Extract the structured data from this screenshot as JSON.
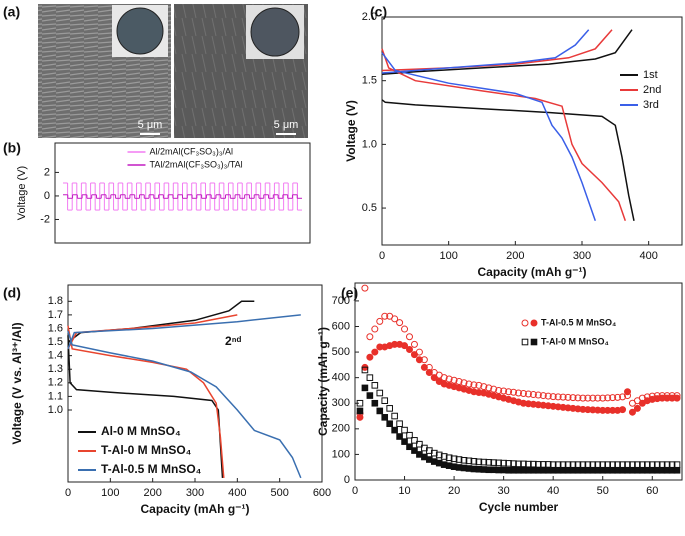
{
  "images": {
    "label": "(a)",
    "scale_bars": [
      "5 μm",
      "5 μm"
    ]
  },
  "chart_data": [
    {
      "label": "(b)",
      "type": "step",
      "y_label": "Voltage (V)",
      "ylim": [
        -4,
        4.5
      ],
      "yticks": [
        2,
        0,
        -2
      ],
      "legend": "upper center",
      "series": [
        {
          "name": "Al/2mAl(CF₃SO₃)₃/Al",
          "color": "#f27cf2",
          "values": [
            1.1,
            -1.2,
            1.1,
            -1.2,
            1.1,
            -1.2,
            1.1,
            -1.2,
            1.1,
            -1.2,
            1.1,
            -1.2,
            1.1,
            -1.2,
            1.1,
            -1.2,
            1.1,
            -1.2,
            1.1,
            -1.2,
            1.1,
            -1.2,
            1.1,
            -1.2,
            1.1,
            -1.2,
            1.1,
            -1.2,
            1.1,
            -1.2,
            1.1,
            -1.2,
            1.1,
            -1.2,
            1.1,
            -1.2,
            1.1,
            -1.2,
            1.1,
            -1.2,
            1.1,
            -1.2,
            1.1,
            -1.2,
            1.1,
            -1.2,
            1.1,
            -1.2,
            1.1,
            -1.2,
            1.1,
            -1.2
          ]
        },
        {
          "name": "TAl/2mAl(CF₃SO₃)₃/TAl",
          "color": "#c21dc2",
          "values": [
            0.1,
            -0.2,
            0.1,
            -0.2,
            0.1,
            -0.2,
            0.1,
            -0.2,
            0.1,
            -0.2,
            0.1,
            -0.2,
            0.1,
            -0.2,
            0.1,
            -0.2,
            0.1,
            -0.2,
            0.1,
            -0.2,
            0.1,
            -0.2,
            0.1,
            -0.2,
            0.1,
            -0.2,
            0.1,
            -0.2,
            0.1,
            -0.2,
            0.1,
            -0.2,
            0.1,
            -0.2,
            0.1,
            -0.2,
            0.1,
            -0.2,
            0.1,
            -0.2,
            0.1,
            -0.2,
            0.1,
            -0.2,
            0.1,
            -0.2,
            0.1,
            -0.2,
            0.1,
            -0.2
          ]
        }
      ]
    },
    {
      "label": "(c)",
      "type": "line",
      "x_label": "Capacity (mAh g⁻¹)",
      "y_label": "Voltage (V)",
      "xlim": [
        0,
        450
      ],
      "xticks": [
        0,
        100,
        200,
        300,
        400
      ],
      "ylim": [
        0.21,
        2.0
      ],
      "yticks": [
        0.5,
        {
          "value": 1,
          "label": "1.0"
        },
        1.5,
        {
          "value": 2,
          "label": "2.0"
        }
      ],
      "legend": "right",
      "series": [
        {
          "name": "1st",
          "color": "#111111",
          "x": [
            0,
            5,
            50,
            150,
            250,
            330,
            350,
            360,
            370,
            378,
            null,
            0,
            50,
            150,
            250,
            320,
            350,
            375
          ],
          "values": [
            1.35,
            1.33,
            1.31,
            1.28,
            1.25,
            1.22,
            1.15,
            0.9,
            0.6,
            0.4,
            null,
            1.55,
            1.57,
            1.6,
            1.63,
            1.67,
            1.72,
            1.9
          ]
        },
        {
          "name": "2nd",
          "color": "#e83a3a",
          "x": [
            0,
            10,
            50,
            150,
            230,
            270,
            285,
            300,
            330,
            355,
            365,
            null,
            0,
            100,
            200,
            280,
            320,
            345
          ],
          "values": [
            1.75,
            1.6,
            1.5,
            1.42,
            1.36,
            1.3,
            1.0,
            0.85,
            0.7,
            0.55,
            0.4,
            null,
            1.58,
            1.6,
            1.63,
            1.68,
            1.75,
            1.9
          ]
        },
        {
          "name": "3rd",
          "color": "#3a5fe8",
          "x": [
            0,
            20,
            100,
            200,
            240,
            255,
            270,
            285,
            300,
            320,
            null,
            0,
            100,
            200,
            260,
            290,
            310
          ],
          "values": [
            1.72,
            1.58,
            1.48,
            1.4,
            1.33,
            1.15,
            1.05,
            0.9,
            0.7,
            0.4,
            null,
            1.56,
            1.6,
            1.64,
            1.68,
            1.78,
            1.9
          ]
        }
      ]
    },
    {
      "label": "(d)",
      "type": "line",
      "x_label": "Capacity (mAh g⁻¹)",
      "y_label": "Voltage (V vs. Al³⁺/Al)",
      "annotation": "2ⁿᵈ",
      "xlim": [
        0,
        600
      ],
      "xticks": [
        0,
        100,
        200,
        300,
        400,
        500,
        600
      ],
      "ylim": [
        0.47,
        1.92
      ],
      "yticks": [
        {
          "value": 1,
          "label": "1.0"
        },
        1.1,
        1.2,
        1.3,
        1.4,
        1.5,
        1.6,
        1.7,
        1.8
      ],
      "legend": "lower left",
      "series": [
        {
          "name": "Al-0 M MnSO₄",
          "color": "#111111",
          "x": [
            0,
            5,
            20,
            100,
            250,
            340,
            355,
            365,
            null,
            0,
            30,
            150,
            300,
            380,
            410,
            440
          ],
          "values": [
            1.55,
            1.2,
            1.15,
            1.13,
            1.1,
            1.07,
            1.0,
            0.5,
            null,
            1.5,
            1.57,
            1.6,
            1.66,
            1.73,
            1.8,
            1.8
          ]
        },
        {
          "name": "T-Al-0 M MnSO₄",
          "color": "#e8452f",
          "x": [
            0,
            10,
            100,
            200,
            280,
            320,
            350,
            360,
            368,
            null,
            0,
            20,
            150,
            300,
            400
          ],
          "values": [
            1.62,
            1.45,
            1.4,
            1.35,
            1.3,
            1.2,
            1.05,
            0.8,
            0.5,
            null,
            1.45,
            1.57,
            1.6,
            1.64,
            1.7
          ]
        },
        {
          "name": "T-Al-0.5 M MnSO₄",
          "color": "#3a6fb0",
          "x": [
            0,
            10,
            100,
            200,
            290,
            350,
            400,
            440,
            500,
            530,
            550,
            null,
            0,
            15,
            200,
            400,
            550
          ],
          "values": [
            1.58,
            1.48,
            1.42,
            1.36,
            1.28,
            1.17,
            1.0,
            0.85,
            0.78,
            0.65,
            0.5,
            null,
            1.45,
            1.57,
            1.6,
            1.65,
            1.7
          ]
        }
      ]
    },
    {
      "label": "(e)",
      "type": "scatter",
      "x_label": "Cycle number",
      "y_label": "Capacity (mAh g⁻¹)",
      "xlim": [
        0,
        66
      ],
      "xticks": [
        0,
        10,
        20,
        30,
        40,
        50,
        60
      ],
      "ylim": [
        0,
        770
      ],
      "yticks": [
        0,
        100,
        200,
        300,
        400,
        500,
        600,
        700
      ],
      "legend": "upper right",
      "x": [
        1,
        2,
        3,
        4,
        5,
        6,
        7,
        8,
        9,
        10,
        11,
        12,
        13,
        14,
        15,
        16,
        17,
        18,
        19,
        20,
        21,
        22,
        23,
        24,
        25,
        26,
        27,
        28,
        29,
        30,
        31,
        32,
        33,
        34,
        35,
        36,
        37,
        38,
        39,
        40,
        41,
        42,
        43,
        44,
        45,
        46,
        47,
        48,
        49,
        50,
        51,
        52,
        53,
        54,
        55,
        56,
        57,
        58,
        59,
        60,
        61,
        62,
        63,
        64,
        65
      ],
      "series": [
        {
          "name": "T-Al-0.5 M MnSO₄",
          "color": "#e8302a",
          "marker": "circle",
          "values": [
            260,
            750,
            560,
            590,
            620,
            640,
            640,
            630,
            615,
            590,
            560,
            530,
            500,
            470,
            440,
            420,
            410,
            400,
            395,
            390,
            385,
            380,
            375,
            372,
            370,
            365,
            360,
            355,
            350,
            348,
            345,
            343,
            340,
            338,
            336,
            334,
            332,
            330,
            328,
            326,
            325,
            324,
            323,
            322,
            321,
            320,
            320,
            320,
            320,
            320,
            321,
            322,
            323,
            325,
            330,
            300,
            310,
            320,
            325,
            328,
            330,
            330,
            330,
            330,
            330
          ],
          "filled_values": [
            245,
            440,
            480,
            500,
            520,
            520,
            525,
            530,
            530,
            525,
            510,
            490,
            470,
            440,
            420,
            400,
            385,
            375,
            370,
            365,
            360,
            355,
            350,
            345,
            342,
            340,
            335,
            330,
            325,
            320,
            315,
            310,
            305,
            300,
            298,
            296,
            294,
            292,
            290,
            288,
            286,
            284,
            282,
            280,
            278,
            276,
            275,
            274,
            273,
            272,
            272,
            272,
            272,
            275,
            345,
            265,
            280,
            300,
            310,
            315,
            318,
            320,
            320,
            320,
            320
          ]
        },
        {
          "name": "T-Al-0 M MnSO₄",
          "color": "#111111",
          "marker": "square",
          "values": [
            300,
            430,
            400,
            370,
            340,
            310,
            280,
            250,
            220,
            195,
            175,
            155,
            140,
            125,
            115,
            105,
            98,
            92,
            87,
            83,
            80,
            77,
            75,
            73,
            71,
            70,
            69,
            68,
            67,
            66,
            65,
            64,
            63,
            63,
            62,
            62,
            61,
            61,
            61,
            60,
            60,
            60,
            60,
            60,
            60,
            60,
            60,
            60,
            60,
            60,
            60,
            60,
            60,
            60,
            60,
            60,
            60,
            60,
            60,
            60,
            60,
            60,
            60,
            60,
            60
          ],
          "filled_values": [
            270,
            360,
            330,
            300,
            270,
            245,
            220,
            195,
            170,
            150,
            130,
            115,
            100,
            90,
            80,
            72,
            66,
            60,
            56,
            52,
            49,
            47,
            45,
            43,
            42,
            41,
            40,
            40,
            39,
            39,
            38,
            38,
            38,
            38,
            38,
            38,
            38,
            38,
            38,
            38,
            38,
            38,
            38,
            38,
            38,
            38,
            38,
            38,
            38,
            38,
            38,
            38,
            38,
            38,
            38,
            38,
            38,
            38,
            38,
            38,
            38,
            38,
            38,
            38,
            38
          ]
        }
      ]
    }
  ]
}
